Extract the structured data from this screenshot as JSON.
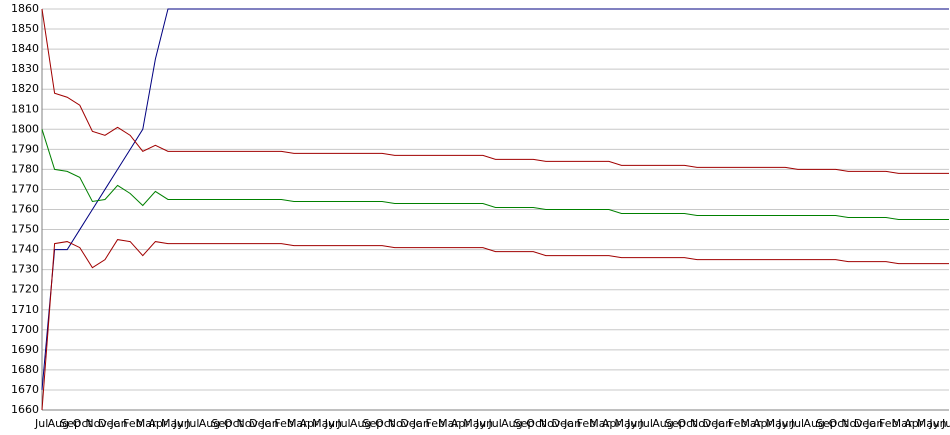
{
  "chart_data": {
    "type": "line",
    "categories": [
      "Jul",
      "Aug",
      "Sep",
      "Oct",
      "Nov",
      "Dec",
      "Jan",
      "Feb",
      "Mar",
      "Apr",
      "May",
      "Jun",
      "Jul",
      "Aug",
      "Sep",
      "Oct",
      "Nov",
      "Dec",
      "Jan",
      "Feb",
      "Mar",
      "Apr",
      "May",
      "Jun",
      "Jul",
      "Aug",
      "Sep",
      "Oct",
      "Nov",
      "Dec",
      "Jan",
      "Feb",
      "Mar",
      "Apr",
      "May",
      "Jun",
      "Jul",
      "Aug",
      "Sep",
      "Oct",
      "Nov",
      "Dec",
      "Jan",
      "Feb",
      "Mar",
      "Apr",
      "May",
      "Jun",
      "Jul",
      "Aug",
      "Sep",
      "Oct",
      "Nov",
      "Dec",
      "Jan",
      "Feb",
      "Mar",
      "Apr",
      "May",
      "Jun",
      "Jul",
      "Aug",
      "Sep",
      "Oct",
      "Nov",
      "Dec",
      "Jan",
      "Feb",
      "Mar",
      "Apr",
      "May",
      "Jun",
      "Jul"
    ],
    "series": [
      {
        "color": "#000080",
        "values": [
          1670,
          1740,
          1740,
          1750,
          1760,
          1770,
          1780,
          1790,
          1800,
          1835,
          1860,
          1860,
          1860,
          1860,
          1860,
          1860,
          1860,
          1860,
          1860,
          1860,
          1860,
          1860,
          1860,
          1860,
          1860,
          1860,
          1860,
          1860,
          1860,
          1860,
          1860,
          1860,
          1860,
          1860,
          1860,
          1860,
          1860,
          1860,
          1860,
          1860,
          1860,
          1860,
          1860,
          1860,
          1860,
          1860,
          1860,
          1860,
          1860,
          1860,
          1860,
          1860,
          1860,
          1860,
          1860,
          1860,
          1860,
          1860,
          1860,
          1860,
          1860,
          1860,
          1860,
          1860,
          1860,
          1860,
          1860,
          1860,
          1860,
          1860,
          1860,
          1860,
          1860
        ]
      },
      {
        "color": "#a00000",
        "values": [
          1860,
          1818,
          1816,
          1812,
          1799,
          1797,
          1801,
          1797,
          1789,
          1792,
          1789,
          1789,
          1789,
          1789,
          1789,
          1789,
          1789,
          1789,
          1789,
          1789,
          1788,
          1788,
          1788,
          1788,
          1788,
          1788,
          1788,
          1788,
          1787,
          1787,
          1787,
          1787,
          1787,
          1787,
          1787,
          1787,
          1785,
          1785,
          1785,
          1785,
          1784,
          1784,
          1784,
          1784,
          1784,
          1784,
          1782,
          1782,
          1782,
          1782,
          1782,
          1782,
          1781,
          1781,
          1781,
          1781,
          1781,
          1781,
          1781,
          1781,
          1780,
          1780,
          1780,
          1780,
          1779,
          1779,
          1779,
          1779,
          1778,
          1778,
          1778,
          1778,
          1778
        ]
      },
      {
        "color": "#008000",
        "values": [
          1800,
          1780,
          1779,
          1776,
          1764,
          1765,
          1772,
          1768,
          1762,
          1769,
          1765,
          1765,
          1765,
          1765,
          1765,
          1765,
          1765,
          1765,
          1765,
          1765,
          1764,
          1764,
          1764,
          1764,
          1764,
          1764,
          1764,
          1764,
          1763,
          1763,
          1763,
          1763,
          1763,
          1763,
          1763,
          1763,
          1761,
          1761,
          1761,
          1761,
          1760,
          1760,
          1760,
          1760,
          1760,
          1760,
          1758,
          1758,
          1758,
          1758,
          1758,
          1758,
          1757,
          1757,
          1757,
          1757,
          1757,
          1757,
          1757,
          1757,
          1757,
          1757,
          1757,
          1757,
          1756,
          1756,
          1756,
          1756,
          1755,
          1755,
          1755,
          1755,
          1755
        ]
      },
      {
        "color": "#a00000",
        "values": [
          1660,
          1743,
          1744,
          1741,
          1731,
          1735,
          1745,
          1744,
          1737,
          1744,
          1743,
          1743,
          1743,
          1743,
          1743,
          1743,
          1743,
          1743,
          1743,
          1743,
          1742,
          1742,
          1742,
          1742,
          1742,
          1742,
          1742,
          1742,
          1741,
          1741,
          1741,
          1741,
          1741,
          1741,
          1741,
          1741,
          1739,
          1739,
          1739,
          1739,
          1737,
          1737,
          1737,
          1737,
          1737,
          1737,
          1736,
          1736,
          1736,
          1736,
          1736,
          1736,
          1735,
          1735,
          1735,
          1735,
          1735,
          1735,
          1735,
          1735,
          1735,
          1735,
          1735,
          1735,
          1734,
          1734,
          1734,
          1734,
          1733,
          1733,
          1733,
          1733,
          1733
        ]
      }
    ],
    "ylim": [
      1660,
      1860
    ],
    "yticks": [
      1660,
      1670,
      1680,
      1690,
      1700,
      1710,
      1720,
      1730,
      1740,
      1750,
      1760,
      1770,
      1780,
      1790,
      1800,
      1810,
      1820,
      1830,
      1840,
      1850,
      1860
    ],
    "grid": true
  }
}
